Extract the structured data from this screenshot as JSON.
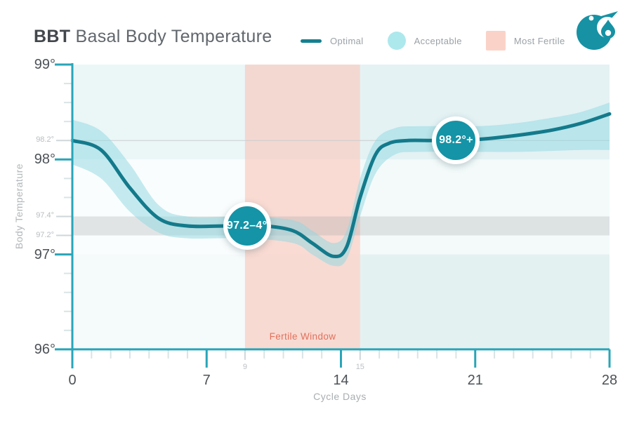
{
  "header": {
    "title_bold": "BBT",
    "title_rest": "Basal Body Temperature",
    "legend": [
      {
        "label": "Optimal",
        "swatch": "line",
        "color": "#16808f"
      },
      {
        "label": "Acceptable",
        "swatch": "circle",
        "color": "#ade8ed"
      },
      {
        "label": "Most Fertile",
        "swatch": "square",
        "color": "#fbd2c8"
      }
    ],
    "logo_icon": "droplet-flag-logo"
  },
  "colors": {
    "brand": "#1692a4",
    "axis": "#29a5b8",
    "optimal_line": "#137a8b",
    "acceptable_band": "rgba(141,216,226,0.5)",
    "badge": "#1494a6",
    "stripe_left_top": "#ebf6f7",
    "stripe_left_mid": "#fafdfd",
    "stripe_left_bottom": "#f5fafb",
    "stripe_right_top": "#e4f2f4",
    "stripe_right_mid": "#f4fafa",
    "stripe_right_bottom": "#e4f1f1",
    "minor_tick": "#d9e4e5",
    "annotated_tick": "#cfd7d9",
    "major_label": "#4c5257",
    "small_label": "#b9bec2"
  },
  "chart_data": {
    "type": "area",
    "title": "BBT Basal Body Temperature",
    "xlabel": "Cycle Days",
    "ylabel": "Body Temperature",
    "xlim": [
      0,
      28
    ],
    "ylim": [
      96,
      99
    ],
    "grid": false,
    "x_minor_step": 1,
    "y_minor_step": 0.2,
    "x_major_ticks": [
      {
        "value": 0,
        "label": "0"
      },
      {
        "value": 7,
        "label": "7"
      },
      {
        "value": 14,
        "label": "14"
      },
      {
        "value": 21,
        "label": "21"
      },
      {
        "value": 28,
        "label": "28"
      }
    ],
    "x_annotated_ticks": [
      {
        "value": 9,
        "label": "9"
      },
      {
        "value": 15,
        "label": "15"
      }
    ],
    "y_major_ticks": [
      {
        "value": 99,
        "label": "99°"
      },
      {
        "value": 98,
        "label": "98°"
      },
      {
        "value": 97,
        "label": "97°"
      },
      {
        "value": 96,
        "label": "96°"
      }
    ],
    "y_annotated_ticks": [
      {
        "value": 98.2,
        "label": "98.2°"
      },
      {
        "value": 97.4,
        "label": "97.4°"
      },
      {
        "value": 97.2,
        "label": "97.2°"
      }
    ],
    "series": [
      {
        "name": "Optimal",
        "kind": "line",
        "points": [
          [
            0,
            98.2
          ],
          [
            1.5,
            98.1
          ],
          [
            3,
            97.7
          ],
          [
            4.5,
            97.38
          ],
          [
            6,
            97.3
          ],
          [
            8,
            97.3
          ],
          [
            10,
            97.3
          ],
          [
            11.5,
            97.25
          ],
          [
            12.5,
            97.12
          ],
          [
            13.6,
            96.98
          ],
          [
            14.3,
            97.08
          ],
          [
            15,
            97.6
          ],
          [
            15.8,
            98.05
          ],
          [
            16.5,
            98.17
          ],
          [
            17.5,
            98.2
          ],
          [
            19,
            98.2
          ],
          [
            21,
            98.21
          ],
          [
            23,
            98.25
          ],
          [
            25,
            98.31
          ],
          [
            26.5,
            98.38
          ],
          [
            28,
            98.48
          ]
        ]
      },
      {
        "name": "Acceptable",
        "kind": "band",
        "upper": [
          [
            0,
            98.42
          ],
          [
            1.5,
            98.3
          ],
          [
            3,
            97.95
          ],
          [
            4.5,
            97.52
          ],
          [
            6,
            97.4
          ],
          [
            9,
            97.4
          ],
          [
            11.5,
            97.36
          ],
          [
            12.5,
            97.25
          ],
          [
            13.6,
            97.12
          ],
          [
            14.3,
            97.25
          ],
          [
            15,
            97.8
          ],
          [
            15.8,
            98.2
          ],
          [
            16.8,
            98.33
          ],
          [
            18,
            98.35
          ],
          [
            21,
            98.35
          ],
          [
            23,
            98.38
          ],
          [
            25,
            98.44
          ],
          [
            26.5,
            98.5
          ],
          [
            28,
            98.6
          ]
        ],
        "lower": [
          [
            0,
            97.95
          ],
          [
            1.5,
            97.8
          ],
          [
            3,
            97.45
          ],
          [
            4.5,
            97.23
          ],
          [
            6,
            97.17
          ],
          [
            9,
            97.17
          ],
          [
            11.5,
            97.12
          ],
          [
            12.5,
            97.0
          ],
          [
            13.6,
            96.88
          ],
          [
            14.3,
            96.95
          ],
          [
            15,
            97.4
          ],
          [
            15.8,
            97.85
          ],
          [
            16.8,
            98.05
          ],
          [
            18,
            98.08
          ],
          [
            21,
            98.08
          ],
          [
            23,
            98.08
          ],
          [
            25,
            98.09
          ],
          [
            26.5,
            98.1
          ],
          [
            28,
            98.1
          ]
        ]
      }
    ],
    "regions": {
      "fertile_window": {
        "label": "Fertile Window",
        "x_range": [
          9,
          15
        ],
        "color": "rgba(249,196,183,0.6)",
        "label_color": "#e2715c"
      },
      "optimal_zone_band": {
        "y_range": [
          97.2,
          97.4
        ],
        "color": "rgba(155,160,163,0.26)"
      },
      "reference_line": {
        "y": 98.2,
        "color": "#c9cdcf"
      }
    },
    "annotations": [
      {
        "label": "97.2–4°",
        "day": 9.1,
        "temp": 97.3
      },
      {
        "label": "98.2°+",
        "day": 20.0,
        "temp": 98.2
      }
    ]
  }
}
